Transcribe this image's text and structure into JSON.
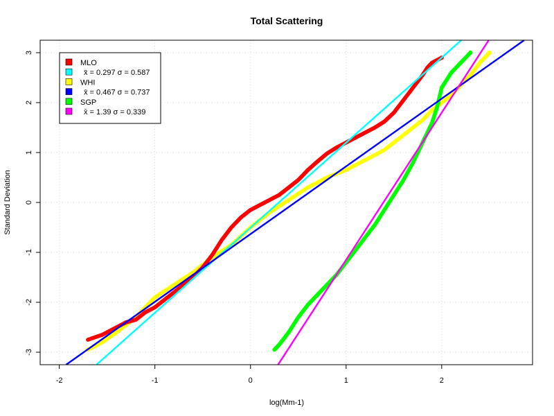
{
  "chart_data": {
    "type": "scatter",
    "title": "Total Scattering",
    "xlabel": "log(Mm-1)",
    "ylabel": "Standard Deviation",
    "xlim": [
      -2.2,
      2.95
    ],
    "ylim": [
      -3.25,
      3.25
    ],
    "xticks": [
      -2,
      -1,
      0,
      1,
      2
    ],
    "yticks": [
      -3,
      -2,
      -1,
      0,
      1,
      2,
      3
    ],
    "xtick_labels": [
      "-2",
      "-1",
      "0",
      "1",
      "2"
    ],
    "ytick_labels": [
      "-3",
      "-2",
      "-1",
      "0",
      "1",
      "2",
      "3"
    ],
    "grid": true,
    "legend_position": "top-left",
    "legend": [
      {
        "label": "MLO",
        "color": "#ff0000"
      },
      {
        "label": "x̄ = 0.297 σ = 0.587",
        "color": "#00ffff"
      },
      {
        "label": "WHI",
        "color": "#ffff00"
      },
      {
        "label": "x̄ = 0.467 σ = 0.737",
        "color": "#0000ff"
      },
      {
        "label": "SGP",
        "color": "#00ff00"
      },
      {
        "label": "x̄ = 1.39 σ = 0.339",
        "color": "#ff00ff"
      }
    ],
    "series": [
      {
        "name": "MLO",
        "color": "#ff0000",
        "x": [
          -1.7,
          -1.55,
          -1.4,
          -1.3,
          -1.2,
          -1.1,
          -1.0,
          -0.9,
          -0.8,
          -0.7,
          -0.6,
          -0.5,
          -0.4,
          -0.3,
          -0.2,
          -0.1,
          0.0,
          0.1,
          0.2,
          0.3,
          0.4,
          0.5,
          0.6,
          0.7,
          0.8,
          0.9,
          1.0,
          1.1,
          1.2,
          1.3,
          1.4,
          1.5,
          1.6,
          1.7,
          1.8,
          1.85,
          1.9,
          2.0
        ],
        "y": [
          -2.75,
          -2.65,
          -2.5,
          -2.4,
          -2.35,
          -2.2,
          -2.1,
          -1.95,
          -1.8,
          -1.65,
          -1.5,
          -1.3,
          -1.05,
          -0.75,
          -0.5,
          -0.3,
          -0.15,
          -0.05,
          0.05,
          0.15,
          0.3,
          0.45,
          0.65,
          0.82,
          0.98,
          1.1,
          1.2,
          1.3,
          1.4,
          1.5,
          1.62,
          1.8,
          2.05,
          2.3,
          2.55,
          2.7,
          2.8,
          2.9
        ]
      },
      {
        "name": "WHI",
        "color": "#ffff00",
        "x": [
          -1.7,
          -1.55,
          -1.4,
          -1.3,
          -1.2,
          -1.1,
          -1.0,
          -0.8,
          -0.6,
          -0.4,
          -0.2,
          0.0,
          0.2,
          0.4,
          0.6,
          0.8,
          1.0,
          1.2,
          1.4,
          1.6,
          1.8,
          1.9,
          2.0,
          2.1,
          2.2,
          2.3,
          2.4,
          2.5
        ],
        "y": [
          -2.95,
          -2.8,
          -2.6,
          -2.45,
          -2.3,
          -2.1,
          -1.9,
          -1.65,
          -1.4,
          -1.1,
          -0.85,
          -0.5,
          -0.2,
          0.05,
          0.3,
          0.5,
          0.65,
          0.85,
          1.05,
          1.35,
          1.65,
          1.85,
          2.0,
          2.15,
          2.35,
          2.55,
          2.8,
          3.0
        ]
      },
      {
        "name": "SGP",
        "color": "#00ff00",
        "x": [
          0.25,
          0.3,
          0.4,
          0.5,
          0.6,
          0.7,
          0.8,
          0.9,
          1.0,
          1.1,
          1.2,
          1.3,
          1.4,
          1.5,
          1.6,
          1.7,
          1.8,
          1.9,
          1.95,
          2.0,
          2.1,
          2.2,
          2.3
        ],
        "y": [
          -2.95,
          -2.85,
          -2.6,
          -2.3,
          -2.05,
          -1.85,
          -1.65,
          -1.45,
          -1.2,
          -0.95,
          -0.7,
          -0.45,
          -0.15,
          0.15,
          0.45,
          0.8,
          1.2,
          1.6,
          1.9,
          2.3,
          2.6,
          2.8,
          3.0
        ]
      }
    ],
    "lines": [
      {
        "name": "MLO fit",
        "color": "#00ffff",
        "mean": 0.297,
        "sd": 0.587
      },
      {
        "name": "WHI fit",
        "color": "#0000ff",
        "mean": 0.467,
        "sd": 0.737
      },
      {
        "name": "SGP fit",
        "color": "#ff00ff",
        "mean": 1.39,
        "sd": 0.339
      }
    ]
  }
}
